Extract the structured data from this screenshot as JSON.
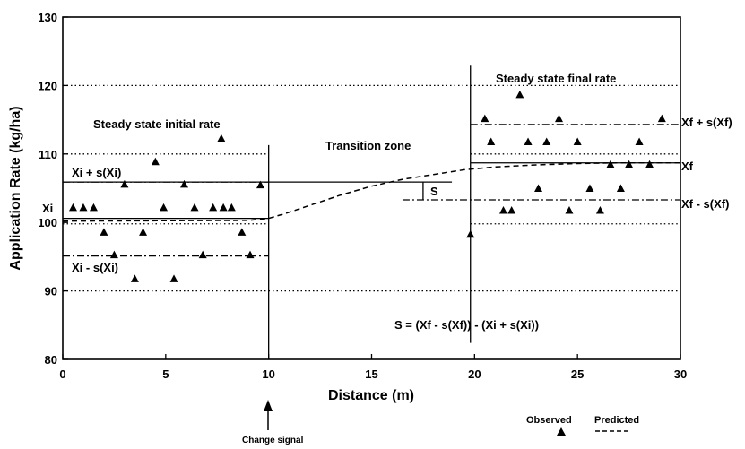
{
  "chart_data": {
    "type": "scatter",
    "title": "",
    "xlabel": "Distance (m)",
    "ylabel": "Application Rate (kg/ha)",
    "xlim": [
      0,
      30
    ],
    "ylim": [
      80,
      130
    ],
    "xticks": [
      0,
      5,
      10,
      15,
      20,
      25,
      30
    ],
    "yticks": [
      80,
      90,
      100,
      110,
      120,
      130
    ],
    "grid_dotted_y": [
      90,
      100,
      110,
      120
    ],
    "grid_dotted_segments": [
      {
        "y": 90,
        "x": [
          0,
          30
        ]
      },
      {
        "y": 99.8,
        "x": [
          0,
          10
        ]
      },
      {
        "y": 99.8,
        "x": [
          19.8,
          30
        ]
      },
      {
        "y": 110,
        "x": [
          0,
          10
        ]
      },
      {
        "y": 110,
        "x": [
          19.8,
          30
        ]
      },
      {
        "y": 120,
        "x": [
          0,
          30
        ]
      }
    ],
    "series": [
      {
        "name": "Observed",
        "marker": "triangle",
        "points": [
          [
            0.5,
            102.2
          ],
          [
            1.0,
            102.2
          ],
          [
            1.5,
            102.2
          ],
          [
            2.0,
            98.6
          ],
          [
            2.5,
            95.3
          ],
          [
            3.0,
            105.6
          ],
          [
            3.5,
            91.8
          ],
          [
            3.9,
            98.6
          ],
          [
            4.5,
            108.9
          ],
          [
            4.9,
            102.2
          ],
          [
            5.4,
            91.8
          ],
          [
            5.9,
            105.6
          ],
          [
            6.4,
            102.2
          ],
          [
            6.8,
            95.3
          ],
          [
            7.3,
            102.2
          ],
          [
            7.7,
            112.3
          ],
          [
            7.8,
            102.2
          ],
          [
            8.2,
            102.2
          ],
          [
            8.7,
            98.6
          ],
          [
            9.1,
            95.3
          ],
          [
            9.6,
            105.5
          ],
          [
            19.8,
            98.3
          ],
          [
            20.5,
            115.2
          ],
          [
            20.8,
            111.8
          ],
          [
            21.4,
            101.8
          ],
          [
            21.8,
            101.8
          ],
          [
            22.2,
            118.7
          ],
          [
            22.6,
            111.8
          ],
          [
            23.1,
            105.0
          ],
          [
            23.5,
            111.8
          ],
          [
            24.1,
            115.2
          ],
          [
            24.6,
            101.8
          ],
          [
            25.0,
            111.8
          ],
          [
            25.6,
            105.0
          ],
          [
            26.1,
            101.8
          ],
          [
            26.6,
            108.5
          ],
          [
            27.1,
            105.0
          ],
          [
            27.5,
            108.5
          ],
          [
            28.0,
            111.8
          ],
          [
            28.5,
            108.5
          ],
          [
            29.1,
            115.2
          ]
        ]
      },
      {
        "name": "Predicted",
        "style": "dashed",
        "points": [
          [
            0,
            100.2
          ],
          [
            9.0,
            100.3
          ],
          [
            10.0,
            100.6
          ],
          [
            10.8,
            101.3
          ],
          [
            12.0,
            102.5
          ],
          [
            13.5,
            104.0
          ],
          [
            15.0,
            105.3
          ],
          [
            16.5,
            106.3
          ],
          [
            18.0,
            107.0
          ],
          [
            19.5,
            107.7
          ],
          [
            21.0,
            108.1
          ],
          [
            23.0,
            108.4
          ],
          [
            25.0,
            108.6
          ],
          [
            27.0,
            108.7
          ],
          [
            30.0,
            108.7
          ]
        ]
      }
    ],
    "reference_lines": [
      {
        "label": "Xi",
        "y": 100.6,
        "x": [
          0,
          10
        ],
        "style": "solid"
      },
      {
        "label": "Xi + s(Xi)",
        "y": 105.9,
        "x": [
          0,
          18.9
        ],
        "style": "solid"
      },
      {
        "label": "Xi - s(Xi)",
        "y": 95.1,
        "x": [
          0,
          10
        ],
        "style": "dash-dot"
      },
      {
        "label": "Xf",
        "y": 108.7,
        "x": [
          19.8,
          30
        ],
        "style": "solid"
      },
      {
        "label": "Xf + s(Xf)",
        "y": 114.3,
        "x": [
          19.8,
          30
        ],
        "style": "dash-dot"
      },
      {
        "label": "Xf - s(Xf)",
        "y": 103.3,
        "x": [
          16.5,
          30
        ],
        "style": "dash-dot"
      },
      {
        "label": "Xi + s(Xi)",
        "y": 105.9,
        "x": [
          0,
          10
        ],
        "style": "dash-dot"
      }
    ],
    "vertical_lines": [
      {
        "x": 10,
        "y": [
          80,
          111.3
        ]
      },
      {
        "x": 19.8,
        "y": [
          82.4,
          122.9
        ]
      }
    ],
    "s_bracket": {
      "x": 17.5,
      "y": [
        103.3,
        105.9
      ]
    },
    "labels": {
      "steady_initial": "Steady state initial rate",
      "steady_final": "Steady state final rate",
      "transition": "Transition zone",
      "xi_plus": "Xi + s(Xi)",
      "xi": "Xi",
      "xi_minus": "Xi - s(Xi)",
      "xf_plus": "Xf + s(Xf)",
      "xf": "Xf",
      "xf_minus": "Xf - s(Xf)",
      "s_label": "S",
      "formula": "S  = (Xf - s(Xf)) - (Xi + s(Xi))",
      "change_signal": "Change signal",
      "legend_observed": "Observed",
      "legend_predicted": "Predicted"
    }
  }
}
